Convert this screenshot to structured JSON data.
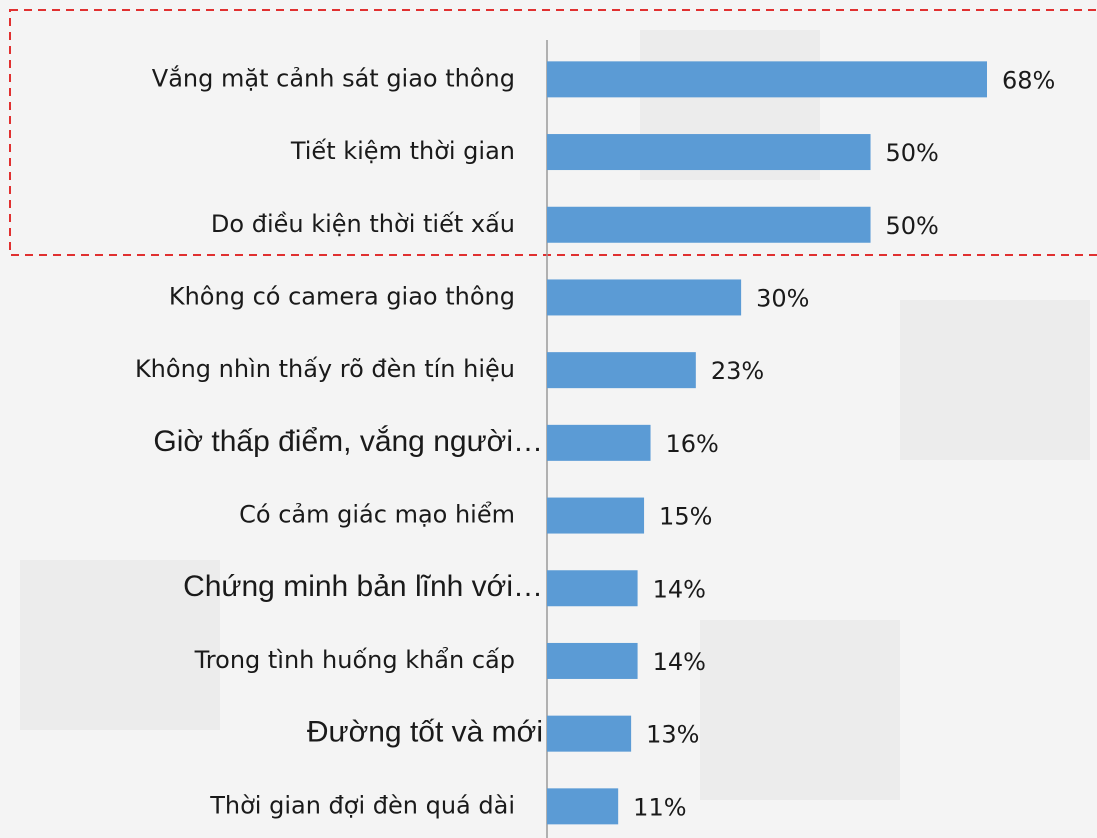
{
  "chart_data": {
    "type": "barh",
    "categories": [
      "Vắng mặt cảnh sát giao thông",
      "Tiết kiệm thời gian",
      "Do điều kiện thời tiết xấu",
      "Không có camera giao thông",
      "Không nhìn thấy rõ đèn tín hiệu",
      "Giờ thấp điểm, vắng người…",
      "Có cảm giác mạo hiểm",
      "Chứng minh bản lĩnh với…",
      "Trong tình huống khẩn cấp",
      "Đường tốt và mới",
      "Thời gian đợi đèn quá dài"
    ],
    "values": [
      68,
      50,
      50,
      30,
      23,
      16,
      15,
      14,
      14,
      13,
      11
    ],
    "value_labels": [
      "68%",
      "50%",
      "50%",
      "30%",
      "23%",
      "16%",
      "15%",
      "14%",
      "14%",
      "13%",
      "11%"
    ],
    "color": "#5b9bd5"
  }
}
